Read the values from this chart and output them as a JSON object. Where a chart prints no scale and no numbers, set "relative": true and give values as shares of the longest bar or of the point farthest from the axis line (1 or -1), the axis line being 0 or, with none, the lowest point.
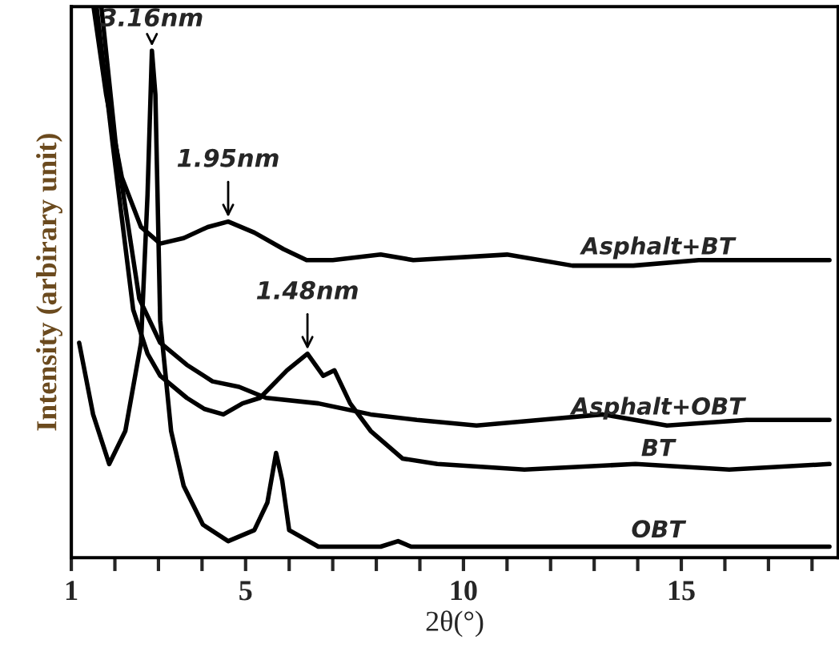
{
  "chart_data": {
    "type": "line",
    "relative": true,
    "xlabel": "2θ(°)",
    "ylabel": "Intensity (arbirary unit)",
    "xlim": [
      1,
      18.6
    ],
    "xticks": [
      1,
      {
        "value": 2,
        "label": null
      },
      {
        "value": 3,
        "label": null
      },
      {
        "value": 4,
        "label": null
      },
      5,
      {
        "value": 6,
        "label": null
      },
      {
        "value": 7,
        "label": null
      },
      {
        "value": 8,
        "label": null
      },
      {
        "value": 9,
        "label": null
      },
      10,
      {
        "value": 11,
        "label": null
      },
      {
        "value": 12,
        "label": null
      },
      {
        "value": 13,
        "label": null
      },
      {
        "value": 14,
        "label": null
      },
      15,
      {
        "value": 16,
        "label": null
      },
      {
        "value": 17,
        "label": null
      },
      {
        "value": 18,
        "label": null
      }
    ],
    "grid": false,
    "legend": false,
    "marker": "none",
    "line_style": "solid",
    "series": [
      {
        "name": "Asphalt+BT",
        "color": "#000000",
        "x": [
          1.51,
          1.8,
          2.16,
          2.6,
          3.04,
          3.58,
          4.13,
          4.6,
          5.2,
          5.87,
          6.4,
          7.0,
          8.1,
          8.85,
          11.0,
          12.5,
          13.9,
          15.4,
          16.85,
          18.4
        ],
        "values": [
          1.0,
          0.84,
          0.69,
          0.6,
          0.57,
          0.58,
          0.6,
          0.61,
          0.59,
          0.56,
          0.54,
          0.54,
          0.55,
          0.54,
          0.55,
          0.53,
          0.53,
          0.54,
          0.54,
          0.54
        ]
      },
      {
        "name": "Asphalt+OBT",
        "color": "#000000",
        "x": [
          1.69,
          2.02,
          2.56,
          3.04,
          3.65,
          4.24,
          4.85,
          5.47,
          6.67,
          7.87,
          8.93,
          10.3,
          11.76,
          13.2,
          14.67,
          16.5,
          18.4
        ],
        "values": [
          1.0,
          0.75,
          0.47,
          0.39,
          0.35,
          0.32,
          0.31,
          0.29,
          0.28,
          0.26,
          0.25,
          0.24,
          0.25,
          0.26,
          0.24,
          0.25,
          0.25
        ]
      },
      {
        "name": "BT",
        "color": "#000000",
        "x": [
          1.58,
          1.95,
          2.42,
          2.75,
          3.04,
          3.65,
          4.05,
          4.49,
          4.93,
          5.33,
          5.95,
          6.42,
          6.78,
          7.04,
          7.4,
          7.87,
          8.6,
          9.4,
          11.4,
          13.95,
          16.1,
          18.4
        ],
        "values": [
          1.0,
          0.75,
          0.45,
          0.37,
          0.33,
          0.29,
          0.27,
          0.26,
          0.28,
          0.29,
          0.34,
          0.37,
          0.33,
          0.34,
          0.28,
          0.23,
          0.18,
          0.17,
          0.16,
          0.17,
          0.16,
          0.17
        ]
      },
      {
        "name": "OBT",
        "color": "#000000",
        "x": [
          1.18,
          1.5,
          1.87,
          2.24,
          2.6,
          2.75,
          2.85,
          2.93,
          3.04,
          3.29,
          3.58,
          4.02,
          4.6,
          5.2,
          5.5,
          5.7,
          5.84,
          6.0,
          6.67,
          8.1,
          8.5,
          8.8,
          10.3,
          13.9,
          15.0,
          16.85,
          18.4
        ],
        "values": [
          0.39,
          0.26,
          0.17,
          0.23,
          0.39,
          0.66,
          0.92,
          0.84,
          0.43,
          0.23,
          0.13,
          0.06,
          0.03,
          0.05,
          0.1,
          0.19,
          0.14,
          0.05,
          0.02,
          0.02,
          0.03,
          0.02,
          0.02,
          0.02,
          0.02,
          0.02,
          0.02
        ]
      }
    ],
    "annotations": [
      {
        "text": "3.16nm",
        "x": 2.85,
        "y": 0.92
      },
      {
        "text": "1.95nm",
        "x": 4.6,
        "y": 0.61
      },
      {
        "text": "1.48nm",
        "x": 6.42,
        "y": 0.37
      }
    ]
  }
}
